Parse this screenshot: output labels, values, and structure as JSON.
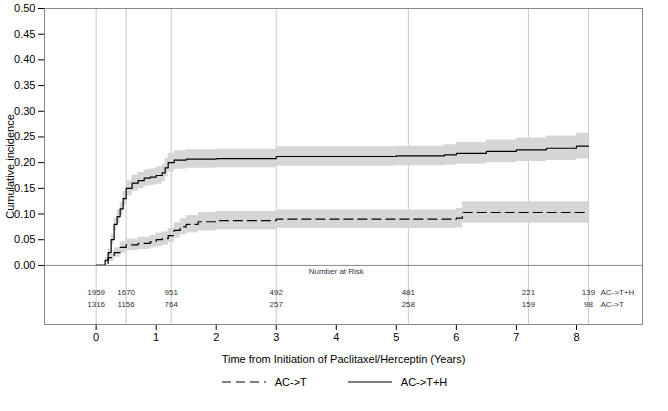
{
  "chart_data": {
    "type": "line",
    "x_label": "Time from Initiation of Paclitaxel/Herceptin (Years)",
    "y_label": "Cumulative incidence",
    "xlim": [
      -0.86,
      9.1
    ],
    "xticks": [
      0,
      1,
      2,
      3,
      4,
      5,
      6,
      7,
      8
    ],
    "ylim": [
      -0.115,
      0.5
    ],
    "yticks": [
      {
        "value": 0,
        "label": "0.00"
      },
      {
        "value": 0.05,
        "label": "0.05"
      },
      {
        "value": 0.1,
        "label": "0.10"
      },
      {
        "value": 0.15,
        "label": "0.15"
      },
      {
        "value": 0.2,
        "label": "0.20"
      },
      {
        "value": 0.25,
        "label": "0.25"
      },
      {
        "value": 0.3,
        "label": "0.30"
      },
      {
        "value": 0.35,
        "label": "0.35"
      },
      {
        "value": 0.4,
        "label": "0.40"
      },
      {
        "value": 0.45,
        "label": "0.45"
      },
      {
        "value": 0.5,
        "label": "0.50"
      }
    ],
    "at_risk_label": "Number at Risk",
    "at_risk_times": [
      0,
      0.5,
      1.25,
      3,
      5.2,
      7.2,
      8.2
    ],
    "legend": "bottom",
    "series": [
      {
        "name": "AC->T+H",
        "color": "#000000",
        "line_style": "solid",
        "x": [
          0,
          0.1,
          0.15,
          0.2,
          0.25,
          0.3,
          0.35,
          0.4,
          0.45,
          0.5,
          0.6,
          0.7,
          0.8,
          0.9,
          1.0,
          1.1,
          1.15,
          1.2,
          1.3,
          1.5,
          2.0,
          3.0,
          5.0,
          5.8,
          6.0,
          6.5,
          7.0,
          7.5,
          8.0,
          8.2
        ],
        "values": [
          0,
          0,
          0.01,
          0.025,
          0.05,
          0.08,
          0.095,
          0.11,
          0.13,
          0.15,
          0.16,
          0.165,
          0.17,
          0.172,
          0.175,
          0.18,
          0.19,
          0.2,
          0.205,
          0.207,
          0.208,
          0.212,
          0.213,
          0.215,
          0.218,
          0.222,
          0.225,
          0.228,
          0.232,
          0.232
        ],
        "lower": [
          0,
          0,
          0.005,
          0.018,
          0.04,
          0.068,
          0.082,
          0.097,
          0.116,
          0.135,
          0.144,
          0.149,
          0.154,
          0.156,
          0.158,
          0.163,
          0.172,
          0.182,
          0.187,
          0.189,
          0.19,
          0.193,
          0.194,
          0.195,
          0.197,
          0.2,
          0.202,
          0.204,
          0.207,
          0.207
        ],
        "upper": [
          0,
          0,
          0.015,
          0.032,
          0.06,
          0.092,
          0.108,
          0.123,
          0.144,
          0.165,
          0.176,
          0.181,
          0.186,
          0.188,
          0.192,
          0.197,
          0.208,
          0.218,
          0.223,
          0.225,
          0.226,
          0.231,
          0.232,
          0.235,
          0.239,
          0.244,
          0.248,
          0.252,
          0.257,
          0.257
        ],
        "at_risk": [
          1959,
          1670,
          951,
          492,
          481,
          221,
          139
        ]
      },
      {
        "name": "AC->T",
        "color": "#000000",
        "line_style": "dashed",
        "x": [
          0,
          0.1,
          0.2,
          0.3,
          0.4,
          0.5,
          0.7,
          0.9,
          1.0,
          1.1,
          1.2,
          1.3,
          1.4,
          1.5,
          1.7,
          2.0,
          3.0,
          5.0,
          6.0,
          6.1,
          8.2
        ],
        "values": [
          0,
          0,
          0.015,
          0.025,
          0.035,
          0.04,
          0.043,
          0.046,
          0.05,
          0.052,
          0.058,
          0.068,
          0.075,
          0.08,
          0.085,
          0.087,
          0.09,
          0.09,
          0.092,
          0.103,
          0.103
        ],
        "lower": [
          0,
          0,
          0.008,
          0.016,
          0.024,
          0.029,
          0.031,
          0.034,
          0.037,
          0.039,
          0.044,
          0.053,
          0.059,
          0.063,
          0.067,
          0.069,
          0.072,
          0.072,
          0.073,
          0.082,
          0.082
        ],
        "upper": [
          0,
          0,
          0.022,
          0.034,
          0.046,
          0.051,
          0.055,
          0.058,
          0.063,
          0.065,
          0.072,
          0.083,
          0.091,
          0.097,
          0.103,
          0.105,
          0.108,
          0.108,
          0.111,
          0.124,
          0.124
        ],
        "at_risk": [
          1316,
          1156,
          764,
          257,
          258,
          159,
          98
        ]
      }
    ]
  }
}
